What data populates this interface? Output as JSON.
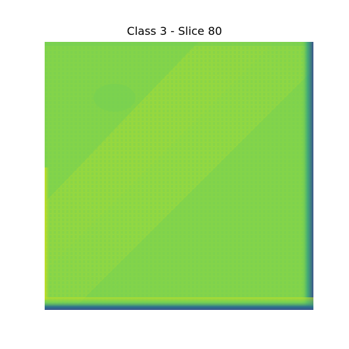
{
  "figure": {
    "title": "Class 3 - Slice 80"
  },
  "image": {
    "colormap": "viridis",
    "base_color": "#8fd744",
    "light_color": "#a0da39",
    "dark_color": "#7ad151",
    "mid_color": "#6ccd5a",
    "edge_dark_color": "#2c728e",
    "edge_deep_color": "#3b528b",
    "yellow_edge_color": "#c8e020"
  }
}
